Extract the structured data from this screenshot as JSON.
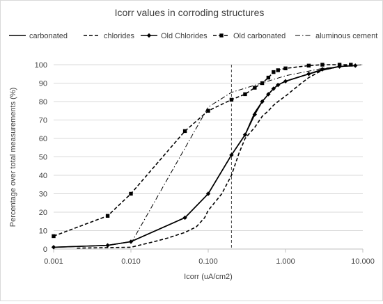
{
  "chart_data": {
    "type": "line",
    "title": "Icorr values in corroding structures",
    "xlabel": "Icorr (uA/cm2)",
    "ylabel": "Percentage over total measurements (%)",
    "xscale": "log",
    "xlim": [
      0.001,
      10
    ],
    "ylim": [
      0,
      100
    ],
    "x_ticks": [
      0.001,
      0.01,
      0.1,
      1,
      10
    ],
    "x_tick_labels": [
      "0.001",
      "0.010",
      "0.100",
      "1.000",
      "10.000"
    ],
    "y_ticks": [
      0,
      10,
      20,
      30,
      40,
      50,
      60,
      70,
      80,
      90,
      100
    ],
    "y_tick_labels": [
      "0",
      "10",
      "20",
      "30",
      "40",
      "50",
      "60",
      "70",
      "80",
      "90",
      "100"
    ],
    "grid": "horizontal",
    "legend_position": "top",
    "reference_line": {
      "x": 0.2,
      "style": "dashed"
    },
    "series": [
      {
        "name": "carbonated",
        "style": "solid",
        "marker": "none",
        "points": [
          [
            0.001,
            1
          ],
          [
            0.005,
            2
          ],
          [
            0.01,
            4
          ],
          [
            0.05,
            17
          ],
          [
            0.1,
            30
          ],
          [
            0.2,
            51
          ],
          [
            0.3,
            62
          ],
          [
            0.4,
            74
          ],
          [
            0.5,
            80
          ],
          [
            0.6,
            84
          ],
          [
            0.7,
            87
          ],
          [
            0.8,
            89
          ],
          [
            1,
            91
          ],
          [
            2,
            95
          ],
          [
            3,
            97
          ],
          [
            5,
            99
          ],
          [
            8,
            99.5
          ]
        ]
      },
      {
        "name": "chlorides",
        "style": "dashed",
        "marker": "none",
        "points": [
          [
            0.002,
            0.5
          ],
          [
            0.01,
            1
          ],
          [
            0.02,
            4
          ],
          [
            0.03,
            6
          ],
          [
            0.05,
            9
          ],
          [
            0.07,
            12
          ],
          [
            0.09,
            17
          ],
          [
            0.1,
            21
          ],
          [
            0.12,
            25
          ],
          [
            0.15,
            30
          ],
          [
            0.2,
            40
          ],
          [
            0.25,
            52
          ],
          [
            0.3,
            60
          ],
          [
            0.4,
            66
          ],
          [
            0.5,
            72
          ],
          [
            0.6,
            75
          ],
          [
            0.7,
            78
          ],
          [
            0.8,
            80
          ],
          [
            1,
            83
          ],
          [
            1.5,
            89
          ],
          [
            2,
            93
          ],
          [
            3,
            97
          ],
          [
            5,
            99
          ],
          [
            7,
            100
          ]
        ]
      },
      {
        "name": "Old Chlorides",
        "style": "solid",
        "marker": "diamond",
        "points": [
          [
            0.001,
            1
          ],
          [
            0.005,
            2
          ],
          [
            0.01,
            4
          ],
          [
            0.05,
            17
          ],
          [
            0.1,
            30
          ],
          [
            0.2,
            51
          ],
          [
            0.3,
            62
          ],
          [
            0.4,
            73
          ],
          [
            0.5,
            80
          ],
          [
            0.6,
            84
          ],
          [
            0.7,
            87
          ],
          [
            0.8,
            89
          ],
          [
            1,
            91
          ],
          [
            2,
            95
          ],
          [
            3,
            97.5
          ],
          [
            5,
            99
          ],
          [
            8,
            99.5
          ]
        ]
      },
      {
        "name": "Old carbonated",
        "style": "dashed",
        "marker": "square",
        "points": [
          [
            0.001,
            7
          ],
          [
            0.005,
            18
          ],
          [
            0.01,
            30
          ],
          [
            0.05,
            64
          ],
          [
            0.1,
            75
          ],
          [
            0.2,
            81
          ],
          [
            0.3,
            84
          ],
          [
            0.4,
            87.5
          ],
          [
            0.5,
            90
          ],
          [
            0.6,
            93
          ],
          [
            0.7,
            96
          ],
          [
            0.8,
            97
          ],
          [
            1,
            98
          ],
          [
            2,
            99.5
          ],
          [
            3,
            100
          ],
          [
            5,
            100
          ],
          [
            7,
            100
          ]
        ]
      },
      {
        "name": "aluminous cement",
        "style": "dashdot",
        "marker": "none",
        "points": [
          [
            0.01,
            3
          ],
          [
            0.1,
            77
          ],
          [
            0.2,
            85
          ],
          [
            1,
            94
          ],
          [
            3,
            98
          ],
          [
            10,
            100
          ]
        ]
      }
    ]
  }
}
